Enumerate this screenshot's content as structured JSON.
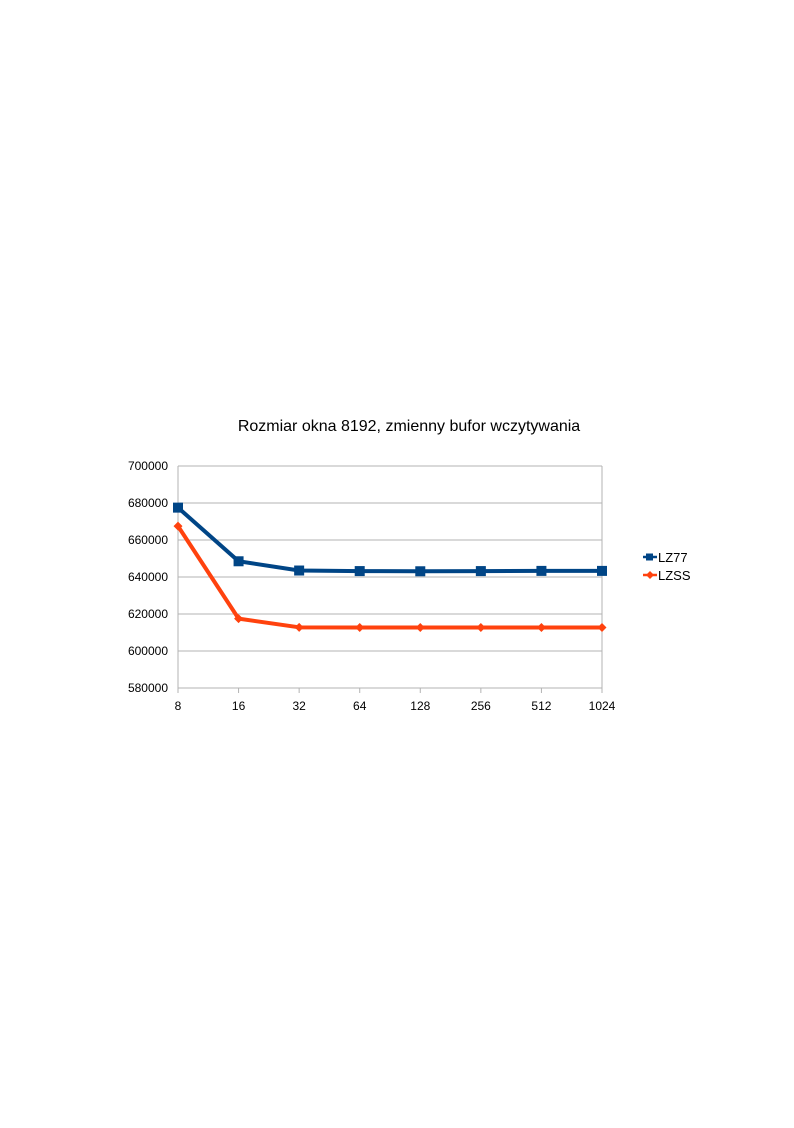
{
  "chart_data": {
    "type": "line",
    "title": "Rozmiar okna 8192, zmienny bufor wczytywania",
    "xlabel": "",
    "ylabel": "",
    "categories": [
      "8",
      "16",
      "32",
      "64",
      "128",
      "256",
      "512",
      "1024"
    ],
    "ylim": [
      580000,
      700000
    ],
    "yticks": [
      "580000",
      "600000",
      "620000",
      "640000",
      "660000",
      "680000",
      "700000"
    ],
    "grid": true,
    "legend_position": "right",
    "series": [
      {
        "name": "LZ77",
        "color": "#004586",
        "marker": "square",
        "values": [
          677500,
          648500,
          643500,
          643200,
          643100,
          643200,
          643300,
          643300
        ]
      },
      {
        "name": "LZSS",
        "color": "#ff420e",
        "marker": "diamond",
        "values": [
          667500,
          617500,
          612800,
          612700,
          612700,
          612700,
          612700,
          612700
        ]
      }
    ]
  }
}
